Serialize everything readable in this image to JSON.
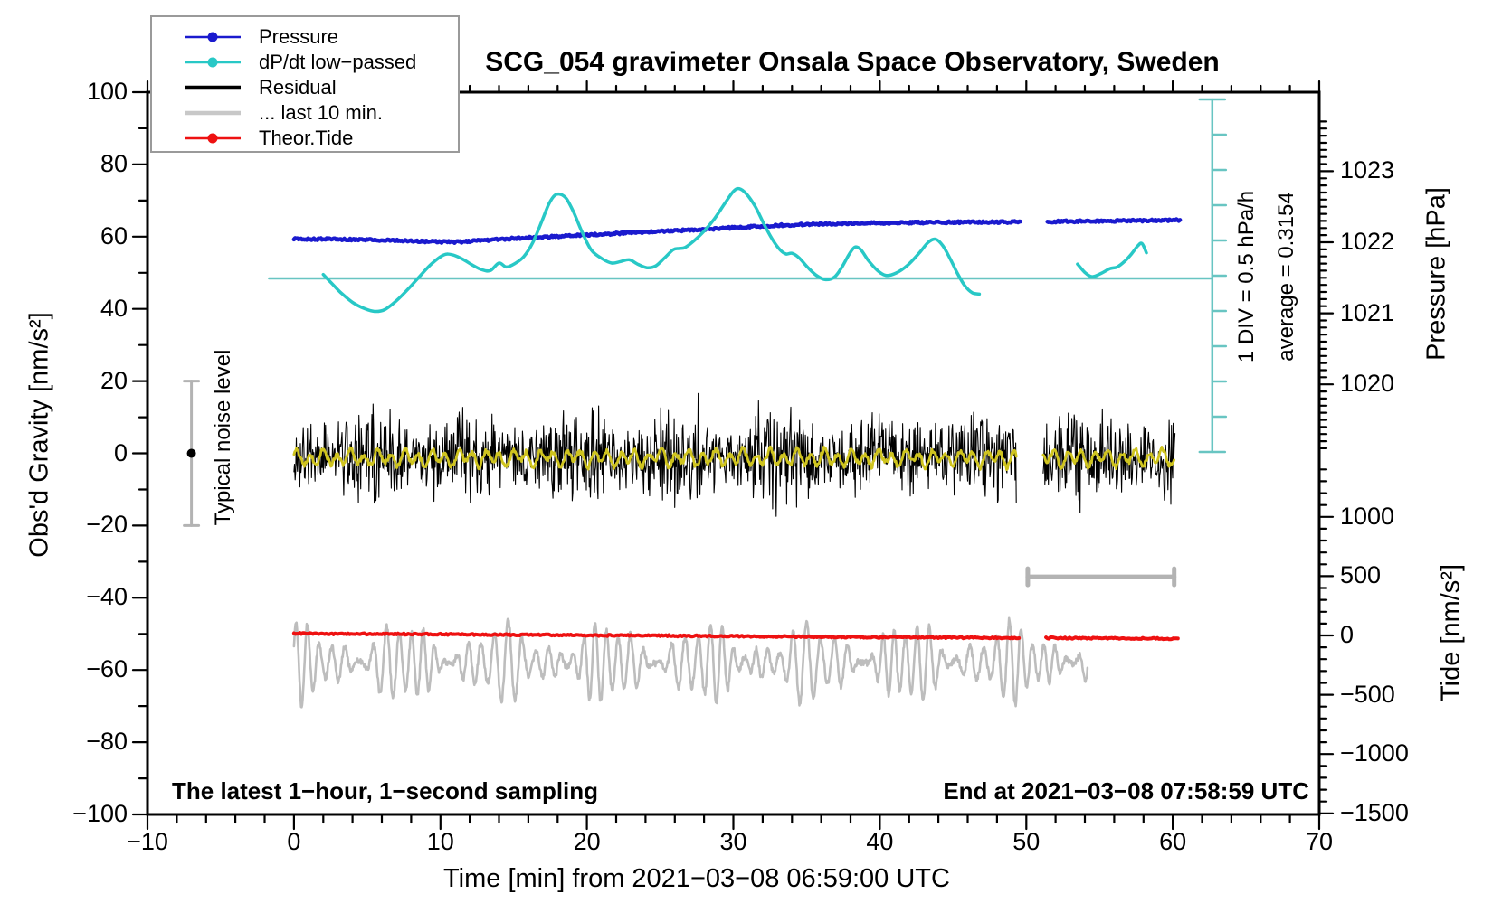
{
  "title": "SCG_054 gravimeter Onsala Space Observatory, Sweden",
  "annotations": {
    "sampling_note": "The latest 1−hour, 1−second sampling",
    "end_note": "End at 2021−03−08 07:58:59 UTC",
    "div_scale_note": "1 DIV = 0.5 hPa/h",
    "average_note": "average = 0.3154",
    "noise_note": "Typical noise level"
  },
  "axes": {
    "x": {
      "title": "Time [min] from 2021−03−08 06:59:00 UTC",
      "range": [
        -10,
        70
      ],
      "ticks": [
        {
          "v": -10,
          "label": "−10"
        },
        {
          "v": 0,
          "label": "0"
        },
        {
          "v": 10,
          "label": "10"
        },
        {
          "v": 20,
          "label": "20"
        },
        {
          "v": 30,
          "label": "30"
        },
        {
          "v": 40,
          "label": "40"
        },
        {
          "v": 50,
          "label": "50"
        },
        {
          "v": 60,
          "label": "60"
        },
        {
          "v": 70,
          "label": "70"
        }
      ],
      "minor_step": 2
    },
    "y_left": {
      "title": "Obs'd Gravity [nm/s²]",
      "range": [
        -100,
        100
      ],
      "ticks": [
        {
          "v": 100,
          "label": "100"
        },
        {
          "v": 80,
          "label": "80"
        },
        {
          "v": 60,
          "label": "60"
        },
        {
          "v": 40,
          "label": "40"
        },
        {
          "v": 20,
          "label": "20"
        },
        {
          "v": 0,
          "label": "0"
        },
        {
          "v": -20,
          "label": "−20"
        },
        {
          "v": -40,
          "label": "−40"
        },
        {
          "v": -60,
          "label": "−60"
        },
        {
          "v": -80,
          "label": "−80"
        },
        {
          "v": -100,
          "label": "−100"
        }
      ],
      "minor_step": 10
    },
    "y_right_pressure": {
      "title": "Pressure [hPa]",
      "ticks": [
        {
          "v": 1023,
          "label": "1023"
        },
        {
          "v": 1022,
          "label": "1022"
        },
        {
          "v": 1021,
          "label": "1021"
        },
        {
          "v": 1020,
          "label": "1020"
        }
      ],
      "minor_step": 0.1
    },
    "y_right_tide": {
      "title": "Tide [nm/s²]",
      "ticks": [
        {
          "v": 1000,
          "label": "1000"
        },
        {
          "v": 500,
          "label": "500"
        },
        {
          "v": 0,
          "label": "0"
        },
        {
          "v": -500,
          "label": "−500"
        },
        {
          "v": -1000,
          "label": "−1000"
        },
        {
          "v": -1500,
          "label": "−1500"
        }
      ],
      "minor_step": 100
    }
  },
  "legend": {
    "items": [
      {
        "label": "Pressure",
        "sample": "dot-line",
        "color": "#1a1ace"
      },
      {
        "label": "dP/dt low−passed",
        "sample": "dot-line",
        "color": "#28c8c6"
      },
      {
        "label": "Residual",
        "sample": "thick-line",
        "color": "#000000"
      },
      {
        "label": "... last 10 min.",
        "sample": "thick-line",
        "color": "#c8c8c8"
      },
      {
        "label": "Theor.Tide",
        "sample": "dot-line",
        "color": "#ee1111"
      }
    ]
  },
  "colors": {
    "pressure": "#1a1ace",
    "dpdt": "#28c8c6",
    "teal_light": "#68c5c2",
    "residual": "#000000",
    "residual_lowpass": "#cfc41f",
    "last10": "#bdbdbd",
    "tide": "#ee1111",
    "bars_gray": "#b3b3b3",
    "frame": "#000000"
  },
  "chart_data": {
    "type": "line",
    "title": "SCG_054 gravimeter Onsala Space Observatory, Sweden",
    "xlabel": "Time [min] from 2021−03−08 06:59:00 UTC",
    "x_range": [
      -10,
      70
    ],
    "gravity_range": [
      -100,
      100
    ],
    "grid": false,
    "legend_position": "top-left",
    "reference_lines": {
      "dpdt_average": {
        "value_hPa_per_h": 0.3154,
        "t0": -1.7,
        "t1": 62.7
      }
    },
    "scale_bar": {
      "t": 62.7,
      "divisions": 10,
      "div_value_hPa_per_h": 0.5
    },
    "noise_error_bar": {
      "t": -7,
      "gravity_center": 0,
      "gravity_halfspan": 20
    },
    "last10_span_bar": {
      "t0": 50.1,
      "t1": 60.1,
      "tide_level": 495
    },
    "series": [
      {
        "name": "Pressure",
        "unit": "hPa",
        "axis": "pressure",
        "segments": [
          [
            [
              0,
              1022.045
            ],
            [
              2,
              1022.044
            ],
            [
              4,
              1022.04
            ],
            [
              6,
              1022.031
            ],
            [
              8,
              1022.018
            ],
            [
              9.5,
              1022.008
            ],
            [
              11,
              1022.003
            ],
            [
              12,
              1022.012
            ],
            [
              13,
              1022.028
            ],
            [
              15,
              1022.055
            ],
            [
              16.5,
              1022.068
            ],
            [
              18,
              1022.082
            ],
            [
              19.5,
              1022.097
            ],
            [
              21,
              1022.112
            ],
            [
              22.5,
              1022.128
            ],
            [
              24,
              1022.143
            ],
            [
              25.5,
              1022.158
            ],
            [
              27,
              1022.172
            ],
            [
              28.5,
              1022.188
            ],
            [
              30,
              1022.205
            ],
            [
              31,
              1022.217
            ],
            [
              32,
              1022.228
            ],
            [
              33,
              1022.237
            ],
            [
              34,
              1022.245
            ],
            [
              35,
              1022.252
            ],
            [
              36,
              1022.258
            ],
            [
              37,
              1022.262
            ],
            [
              38,
              1022.266
            ],
            [
              39,
              1022.269
            ],
            [
              40,
              1022.272
            ],
            [
              41.5,
              1022.275
            ],
            [
              43,
              1022.278
            ],
            [
              44.5,
              1022.28
            ],
            [
              46,
              1022.282
            ],
            [
              47.5,
              1022.284
            ],
            [
              49.6,
              1022.285
            ]
          ],
          [
            [
              51.45,
              1022.292
            ],
            [
              53,
              1022.294
            ],
            [
              54,
              1022.296
            ],
            [
              55.5,
              1022.299
            ],
            [
              57,
              1022.302
            ],
            [
              58,
              1022.305
            ],
            [
              59,
              1022.308
            ],
            [
              60.55,
              1022.312
            ]
          ]
        ]
      },
      {
        "name": "dP/dt low−passed",
        "unit": "hPa/h",
        "axis": "dpdt",
        "segments": [
          [
            [
              2.0,
              0.37
            ],
            [
              2.6,
              0.242
            ],
            [
              3.2,
              0.115
            ],
            [
              4.0,
              -0.022
            ],
            [
              4.8,
              -0.108
            ],
            [
              5.5,
              -0.149
            ],
            [
              6.2,
              -0.124
            ],
            [
              7.0,
              0.003
            ],
            [
              7.8,
              0.166
            ],
            [
              8.6,
              0.349
            ],
            [
              9.4,
              0.522
            ],
            [
              10.2,
              0.644
            ],
            [
              10.8,
              0.649
            ],
            [
              11.5,
              0.588
            ],
            [
              12.2,
              0.501
            ],
            [
              12.8,
              0.44
            ],
            [
              13.4,
              0.425
            ],
            [
              14.0,
              0.532
            ],
            [
              14.5,
              0.476
            ],
            [
              15.1,
              0.527
            ],
            [
              15.7,
              0.624
            ],
            [
              16.3,
              0.817
            ],
            [
              16.9,
              1.107
            ],
            [
              17.4,
              1.361
            ],
            [
              17.8,
              1.483
            ],
            [
              18.2,
              1.498
            ],
            [
              18.6,
              1.437
            ],
            [
              19.1,
              1.244
            ],
            [
              19.7,
              0.954
            ],
            [
              20.3,
              0.715
            ],
            [
              21.0,
              0.598
            ],
            [
              21.7,
              0.532
            ],
            [
              22.3,
              0.553
            ],
            [
              22.9,
              0.578
            ],
            [
              23.5,
              0.512
            ],
            [
              24.1,
              0.466
            ],
            [
              24.7,
              0.491
            ],
            [
              25.3,
              0.603
            ],
            [
              25.9,
              0.72
            ],
            [
              26.3,
              0.736
            ],
            [
              26.7,
              0.751
            ],
            [
              27.3,
              0.842
            ],
            [
              28.0,
              0.98
            ],
            [
              28.7,
              1.153
            ],
            [
              29.4,
              1.366
            ],
            [
              30.0,
              1.539
            ],
            [
              30.4,
              1.579
            ],
            [
              30.9,
              1.503
            ],
            [
              31.5,
              1.325
            ],
            [
              32.1,
              1.076
            ],
            [
              32.7,
              0.853
            ],
            [
              33.2,
              0.715
            ],
            [
              33.6,
              0.659
            ],
            [
              34.0,
              0.669
            ],
            [
              34.5,
              0.603
            ],
            [
              35.1,
              0.466
            ],
            [
              35.7,
              0.354
            ],
            [
              36.3,
              0.298
            ],
            [
              36.9,
              0.334
            ],
            [
              37.4,
              0.471
            ],
            [
              37.9,
              0.654
            ],
            [
              38.3,
              0.756
            ],
            [
              38.7,
              0.72
            ],
            [
              39.2,
              0.573
            ],
            [
              39.8,
              0.435
            ],
            [
              40.4,
              0.359
            ],
            [
              41.1,
              0.39
            ],
            [
              41.9,
              0.501
            ],
            [
              42.7,
              0.675
            ],
            [
              43.3,
              0.822
            ],
            [
              43.8,
              0.868
            ],
            [
              44.3,
              0.776
            ],
            [
              44.8,
              0.593
            ],
            [
              45.3,
              0.385
            ],
            [
              45.8,
              0.212
            ],
            [
              46.3,
              0.115
            ],
            [
              46.8,
              0.095
            ]
          ],
          [
            [
              53.5,
              0.517
            ],
            [
              54.0,
              0.4
            ],
            [
              54.5,
              0.339
            ],
            [
              55.1,
              0.385
            ],
            [
              55.7,
              0.451
            ],
            [
              56.2,
              0.476
            ],
            [
              56.7,
              0.553
            ],
            [
              57.2,
              0.664
            ],
            [
              57.6,
              0.771
            ],
            [
              57.9,
              0.807
            ],
            [
              58.2,
              0.675
            ]
          ]
        ]
      },
      {
        "name": "Residual",
        "unit": "nm/s²",
        "axis": "gravity",
        "representation": "noise_band",
        "segments": [
          {
            "t0": 0,
            "t1": 49.35
          },
          {
            "t0": 51.15,
            "t1": 60.15
          }
        ],
        "mean": -1,
        "typical_amplitude": 13,
        "extreme_range": [
          -18.5,
          23.5
        ]
      },
      {
        "name": "Residual low-passed overlay",
        "unit": "nm/s²",
        "axis": "gravity",
        "representation": "slow_wiggle",
        "segments": [
          {
            "t0": 0,
            "t1": 49.35
          },
          {
            "t0": 51.15,
            "t1": 60.15
          }
        ],
        "mean": -1.3,
        "amplitude": 2.6
      },
      {
        "name": "... last 10 min.",
        "unit": "nm/s²",
        "axis": "tide",
        "representation": "oscillating_band",
        "segments": [
          {
            "t0": 0,
            "t1": 54.2
          }
        ],
        "center": -245,
        "amplitude_range": [
          40,
          370
        ],
        "period_min": 0.85
      },
      {
        "name": "Theor.Tide",
        "unit": "nm/s²",
        "axis": "tide",
        "segments": [
          [
            [
              0,
              16
            ],
            [
              5,
              13
            ],
            [
              10,
              10
            ],
            [
              15,
              6
            ],
            [
              20,
              2
            ],
            [
              25,
              -2
            ],
            [
              30,
              -6
            ],
            [
              35,
              -11
            ],
            [
              40,
              -15
            ],
            [
              45,
              -18
            ],
            [
              49.55,
              -20
            ]
          ],
          [
            [
              51.35,
              -21
            ],
            [
              55,
              -24
            ],
            [
              58,
              -26
            ],
            [
              60.45,
              -28
            ]
          ]
        ]
      }
    ]
  }
}
